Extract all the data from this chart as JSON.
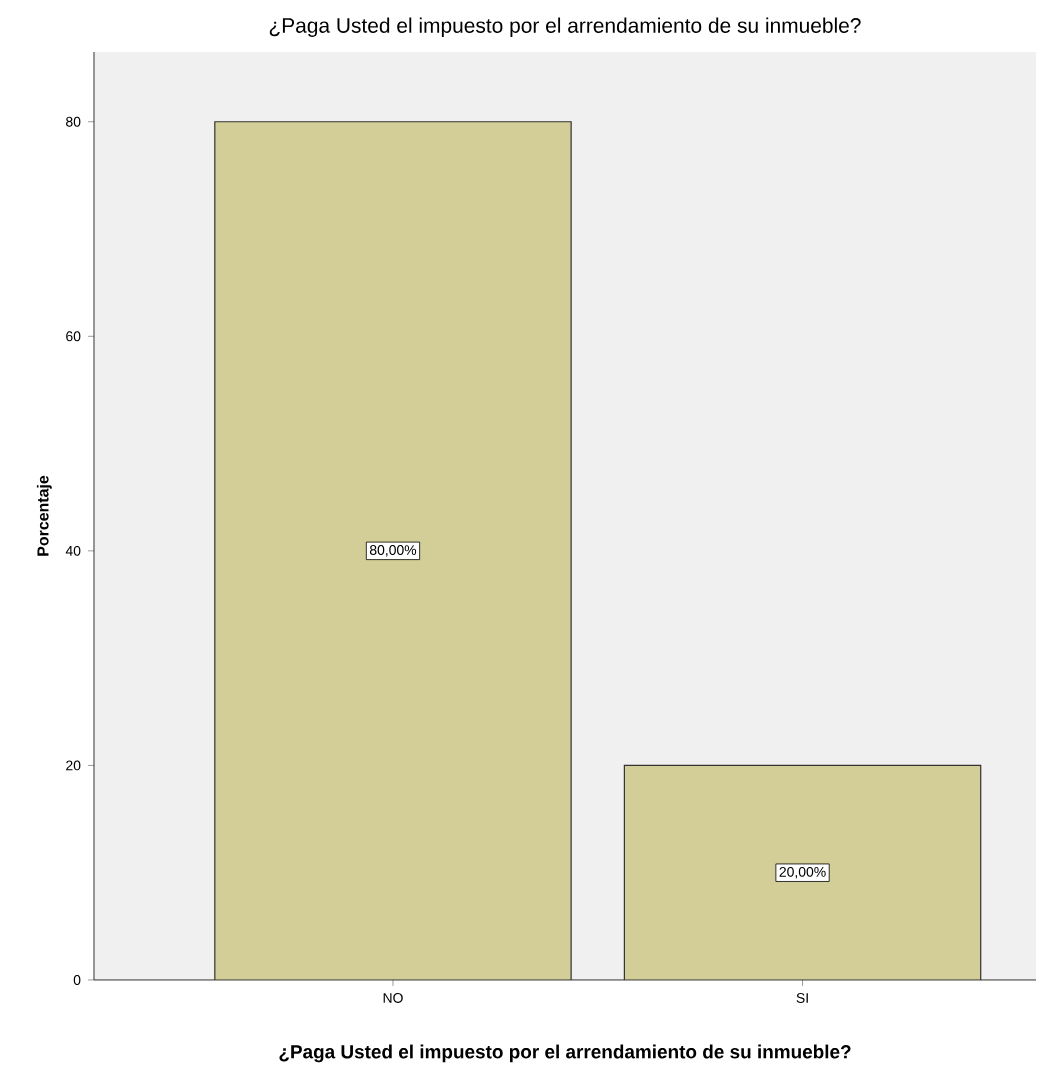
{
  "chart_data": {
    "type": "bar",
    "title": "¿Paga Usted el impuesto por el arrendamiento de su inmueble?",
    "xlabel": "¿Paga Usted el impuesto por el arrendamiento de su inmueble?",
    "ylabel": "Porcentaje",
    "categories": [
      "NO",
      "SI"
    ],
    "values": [
      80,
      20
    ],
    "value_labels": [
      "80,00%",
      "20,00%"
    ],
    "color": "#d3ce97",
    "ylim": [
      0,
      86.5
    ],
    "yticks": [
      0,
      20,
      40,
      60,
      80
    ],
    "grid": false
  }
}
